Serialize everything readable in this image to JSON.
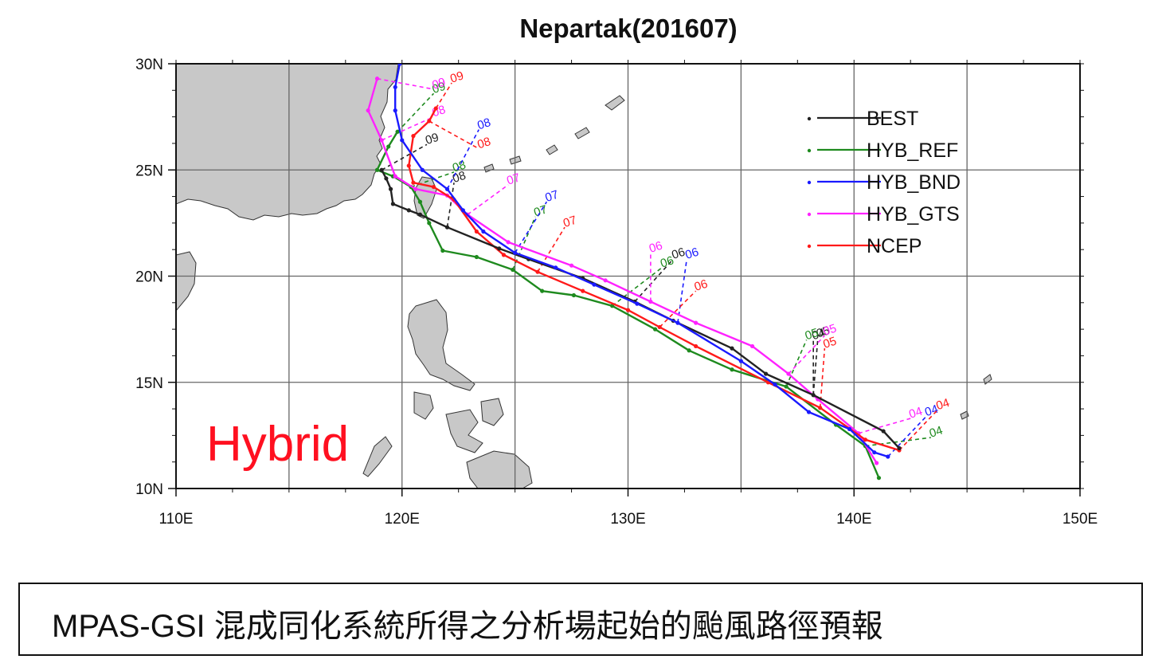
{
  "caption": "MPAS-GSI 混成同化系統所得之分析場起始的颱風路徑預報",
  "overlay_label": "Hybrid",
  "colors": {
    "land": "#c8c8c8",
    "grid": "#555555",
    "BEST": "#222222",
    "HYB_REF": "#1e8a1e",
    "HYB_BND": "#1a1aff",
    "HYB_GTS": "#ff22ff",
    "NCEP": "#ff1a1a",
    "overlay": "#ff1020"
  },
  "chart_data": {
    "type": "line",
    "title": "Nepartak(201607)",
    "xlabel": "",
    "ylabel": "",
    "xlim": [
      110,
      150
    ],
    "ylim": [
      10,
      30
    ],
    "xticks": [
      "110E",
      "120E",
      "130E",
      "140E",
      "150E"
    ],
    "yticks": [
      "10N",
      "15N",
      "20N",
      "25N",
      "30N"
    ],
    "grid": true,
    "legend_position": "top-right",
    "series": [
      {
        "name": "BEST",
        "points": [
          [
            142.0,
            11.9
          ],
          [
            141.3,
            12.7
          ],
          [
            138.2,
            14.4
          ],
          [
            136.1,
            15.4
          ],
          [
            134.6,
            16.6
          ],
          [
            132.0,
            17.9
          ],
          [
            130.3,
            18.8
          ],
          [
            128.0,
            19.9
          ],
          [
            125.6,
            20.8
          ],
          [
            124.3,
            21.3
          ],
          [
            122.0,
            22.3
          ],
          [
            120.8,
            22.9
          ],
          [
            120.3,
            23.1
          ],
          [
            119.6,
            23.4
          ],
          [
            119.5,
            24.1
          ],
          [
            119.3,
            24.6
          ],
          [
            119.1,
            25.0
          ]
        ]
      },
      {
        "name": "HYB_REF",
        "points": [
          [
            141.1,
            10.5
          ],
          [
            140.5,
            12.0
          ],
          [
            139.2,
            13.0
          ],
          [
            137.0,
            14.8
          ],
          [
            134.6,
            15.6
          ],
          [
            132.7,
            16.5
          ],
          [
            131.2,
            17.5
          ],
          [
            129.3,
            18.6
          ],
          [
            127.6,
            19.1
          ],
          [
            126.2,
            19.3
          ],
          [
            124.9,
            20.3
          ],
          [
            123.3,
            20.9
          ],
          [
            121.8,
            21.2
          ],
          [
            121.2,
            22.5
          ],
          [
            120.8,
            23.5
          ],
          [
            120.4,
            24.2
          ],
          [
            119.6,
            24.7
          ],
          [
            118.9,
            25.0
          ],
          [
            119.4,
            26.1
          ],
          [
            119.8,
            26.8
          ]
        ]
      },
      {
        "name": "HYB_BND",
        "points": [
          [
            141.5,
            11.5
          ],
          [
            140.9,
            11.7
          ],
          [
            139.8,
            12.8
          ],
          [
            138.0,
            13.6
          ],
          [
            136.5,
            14.9
          ],
          [
            135.0,
            16.0
          ],
          [
            132.2,
            17.8
          ],
          [
            130.4,
            18.7
          ],
          [
            128.5,
            19.6
          ],
          [
            126.8,
            20.4
          ],
          [
            125.0,
            21.1
          ],
          [
            123.6,
            22.1
          ],
          [
            122.7,
            23.1
          ],
          [
            122.0,
            24.1
          ],
          [
            120.9,
            25.0
          ],
          [
            120.0,
            26.4
          ],
          [
            119.7,
            27.8
          ],
          [
            119.7,
            28.9
          ],
          [
            119.9,
            30.0
          ]
        ]
      },
      {
        "name": "HYB_GTS",
        "points": [
          [
            141.0,
            11.2
          ],
          [
            140.2,
            12.6
          ],
          [
            138.4,
            14.2
          ],
          [
            137.1,
            15.4
          ],
          [
            135.5,
            16.7
          ],
          [
            133.0,
            17.8
          ],
          [
            131.0,
            18.8
          ],
          [
            129.0,
            19.8
          ],
          [
            127.5,
            20.5
          ],
          [
            124.7,
            21.6
          ],
          [
            122.9,
            22.9
          ],
          [
            122.0,
            23.8
          ],
          [
            120.6,
            24.1
          ],
          [
            119.7,
            24.7
          ],
          [
            119.1,
            26.4
          ],
          [
            118.5,
            27.8
          ],
          [
            118.9,
            29.3
          ]
        ]
      },
      {
        "name": "NCEP",
        "points": [
          [
            142.0,
            11.8
          ],
          [
            140.5,
            12.3
          ],
          [
            138.5,
            13.8
          ],
          [
            136.2,
            15.0
          ],
          [
            133.0,
            16.7
          ],
          [
            131.4,
            17.6
          ],
          [
            130.0,
            18.4
          ],
          [
            128.0,
            19.3
          ],
          [
            126.0,
            20.2
          ],
          [
            124.5,
            21.0
          ],
          [
            123.3,
            22.1
          ],
          [
            122.3,
            23.6
          ],
          [
            121.4,
            24.2
          ],
          [
            120.5,
            24.4
          ],
          [
            120.3,
            25.2
          ],
          [
            120.5,
            26.6
          ],
          [
            121.2,
            27.3
          ],
          [
            121.5,
            27.9
          ]
        ]
      }
    ],
    "forecast_day_labels": [
      {
        "series": "BEST",
        "text": "04",
        "lon": 138.2,
        "lat": 17.0
      },
      {
        "series": "BEST",
        "text": "05",
        "lon": 138.4,
        "lat": 17.1
      },
      {
        "series": "BEST",
        "text": "06",
        "lon": 132.0,
        "lat": 20.8
      },
      {
        "series": "BEST",
        "text": "08",
        "lon": 122.3,
        "lat": 24.4
      },
      {
        "series": "BEST",
        "text": "09",
        "lon": 121.1,
        "lat": 26.2
      },
      {
        "series": "HYB_REF",
        "text": "04",
        "lon": 143.4,
        "lat": 12.4
      },
      {
        "series": "HYB_REF",
        "text": "05",
        "lon": 137.9,
        "lat": 17.0
      },
      {
        "series": "HYB_REF",
        "text": "06",
        "lon": 131.5,
        "lat": 20.4
      },
      {
        "series": "HYB_REF",
        "text": "07",
        "lon": 125.9,
        "lat": 22.8
      },
      {
        "series": "HYB_REF",
        "text": "08",
        "lon": 122.3,
        "lat": 24.9
      },
      {
        "series": "HYB_REF",
        "text": "09",
        "lon": 121.4,
        "lat": 28.6
      },
      {
        "series": "HYB_BND",
        "text": "04",
        "lon": 143.2,
        "lat": 13.4
      },
      {
        "series": "HYB_BND",
        "text": "06",
        "lon": 132.6,
        "lat": 20.8
      },
      {
        "series": "HYB_BND",
        "text": "07",
        "lon": 126.4,
        "lat": 23.5
      },
      {
        "series": "HYB_BND",
        "text": "08",
        "lon": 123.4,
        "lat": 26.9
      },
      {
        "series": "HYB_GTS",
        "text": "04",
        "lon": 142.5,
        "lat": 13.3
      },
      {
        "series": "HYB_GTS",
        "text": "05",
        "lon": 138.7,
        "lat": 17.2
      },
      {
        "series": "HYB_GTS",
        "text": "06",
        "lon": 131.0,
        "lat": 21.1
      },
      {
        "series": "HYB_GTS",
        "text": "07",
        "lon": 124.7,
        "lat": 24.3
      },
      {
        "series": "HYB_GTS",
        "text": "08",
        "lon": 121.4,
        "lat": 27.5
      },
      {
        "series": "HYB_GTS",
        "text": "09",
        "lon": 121.4,
        "lat": 28.8
      },
      {
        "series": "NCEP",
        "text": "04",
        "lon": 143.7,
        "lat": 13.7
      },
      {
        "series": "NCEP",
        "text": "05",
        "lon": 138.7,
        "lat": 16.6
      },
      {
        "series": "NCEP",
        "text": "06",
        "lon": 133.0,
        "lat": 19.3
      },
      {
        "series": "NCEP",
        "text": "07",
        "lon": 127.2,
        "lat": 22.3
      },
      {
        "series": "NCEP",
        "text": "08",
        "lon": 123.4,
        "lat": 26.0
      },
      {
        "series": "NCEP",
        "text": "09",
        "lon": 122.2,
        "lat": 29.1
      }
    ]
  }
}
